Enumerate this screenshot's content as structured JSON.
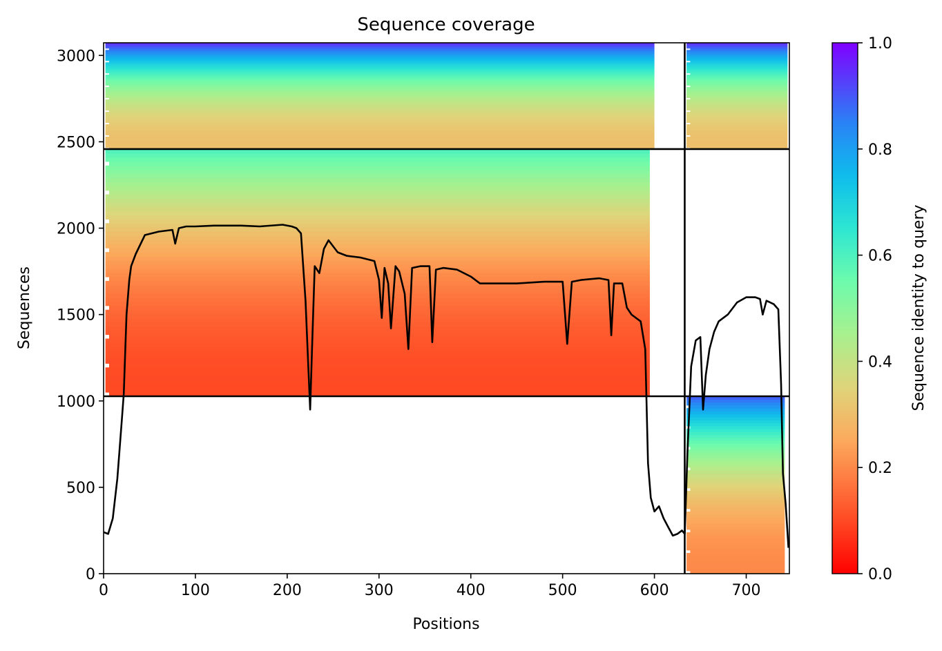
{
  "chart_data": {
    "type": "heatmap",
    "title": "Sequence coverage",
    "xlabel": "Positions",
    "ylabel": "Sequences",
    "xlim": [
      0,
      747
    ],
    "ylim": [
      0,
      3073
    ],
    "xticks": [
      0,
      100,
      200,
      300,
      400,
      500,
      600,
      700
    ],
    "yticks": [
      0,
      500,
      1000,
      1500,
      2000,
      2500,
      3000
    ],
    "colorbar": {
      "label": "Sequence identity to query",
      "range": [
        0.0,
        1.0
      ],
      "ticks": [
        "0.0",
        "0.2",
        "0.4",
        "0.6",
        "0.8",
        "1.0"
      ],
      "colormap": "rainbow_r"
    },
    "chain_breaks": {
      "x": [
        633
      ],
      "y": [
        1027,
        2458
      ]
    },
    "coverage_blocks": [
      {
        "x": [
          0,
          633
        ],
        "y": [
          2458,
          3073
        ],
        "identity_top": 0.95,
        "identity_bottom": 0.3,
        "right_edge": 600
      },
      {
        "x": [
          633,
          747
        ],
        "y": [
          2458,
          3073
        ],
        "identity_top": 0.95,
        "identity_bottom": 0.3,
        "right_edge": 745
      },
      {
        "x": [
          0,
          633
        ],
        "y": [
          1027,
          2458
        ],
        "identity_top": 0.6,
        "identity_bottom": 0.1,
        "right_edge": 595
      },
      {
        "x": [
          633,
          747
        ],
        "y": [
          0,
          1027
        ],
        "identity_top": 0.9,
        "identity_bottom": 0.2,
        "right_edge": 742
      }
    ],
    "series": [
      {
        "type": "line",
        "color": "#000000",
        "x": [
          0,
          5,
          10,
          15,
          20,
          22,
          25,
          28,
          30,
          35,
          45,
          60,
          75,
          78,
          82,
          90,
          100,
          120,
          150,
          170,
          195,
          205,
          210,
          215,
          220,
          223,
          225,
          227,
          230,
          235,
          240,
          245,
          255,
          265,
          280,
          295,
          300,
          303,
          306,
          310,
          313,
          318,
          322,
          328,
          332,
          336,
          345,
          355,
          358,
          362,
          370,
          385,
          400,
          410,
          420,
          450,
          480,
          500,
          505,
          510,
          520,
          540,
          550,
          553,
          556,
          565,
          570,
          575,
          580,
          585,
          590,
          593,
          596,
          600,
          605,
          610,
          615,
          620,
          625,
          630,
          633,
          636,
          640,
          645,
          650,
          653,
          656,
          660,
          665,
          670,
          680,
          690,
          700,
          710,
          715,
          718,
          722,
          730,
          735,
          738,
          740,
          743,
          746
        ],
        "y": [
          240,
          230,
          320,
          550,
          900,
          1040,
          1500,
          1700,
          1780,
          1850,
          1960,
          1980,
          1990,
          1910,
          2000,
          2010,
          2010,
          2015,
          2015,
          2010,
          2020,
          2010,
          2000,
          1970,
          1580,
          1200,
          950,
          1300,
          1780,
          1740,
          1880,
          1930,
          1860,
          1840,
          1830,
          1810,
          1700,
          1480,
          1770,
          1680,
          1420,
          1780,
          1750,
          1620,
          1300,
          1770,
          1780,
          1780,
          1340,
          1760,
          1770,
          1760,
          1720,
          1680,
          1680,
          1680,
          1690,
          1690,
          1330,
          1690,
          1700,
          1710,
          1700,
          1380,
          1680,
          1680,
          1540,
          1500,
          1480,
          1460,
          1300,
          640,
          440,
          360,
          390,
          320,
          270,
          220,
          230,
          250,
          230,
          700,
          1200,
          1350,
          1370,
          950,
          1150,
          1300,
          1400,
          1460,
          1500,
          1570,
          1600,
          1600,
          1590,
          1500,
          1580,
          1560,
          1530,
          1100,
          580,
          400,
          150
        ]
      }
    ]
  }
}
